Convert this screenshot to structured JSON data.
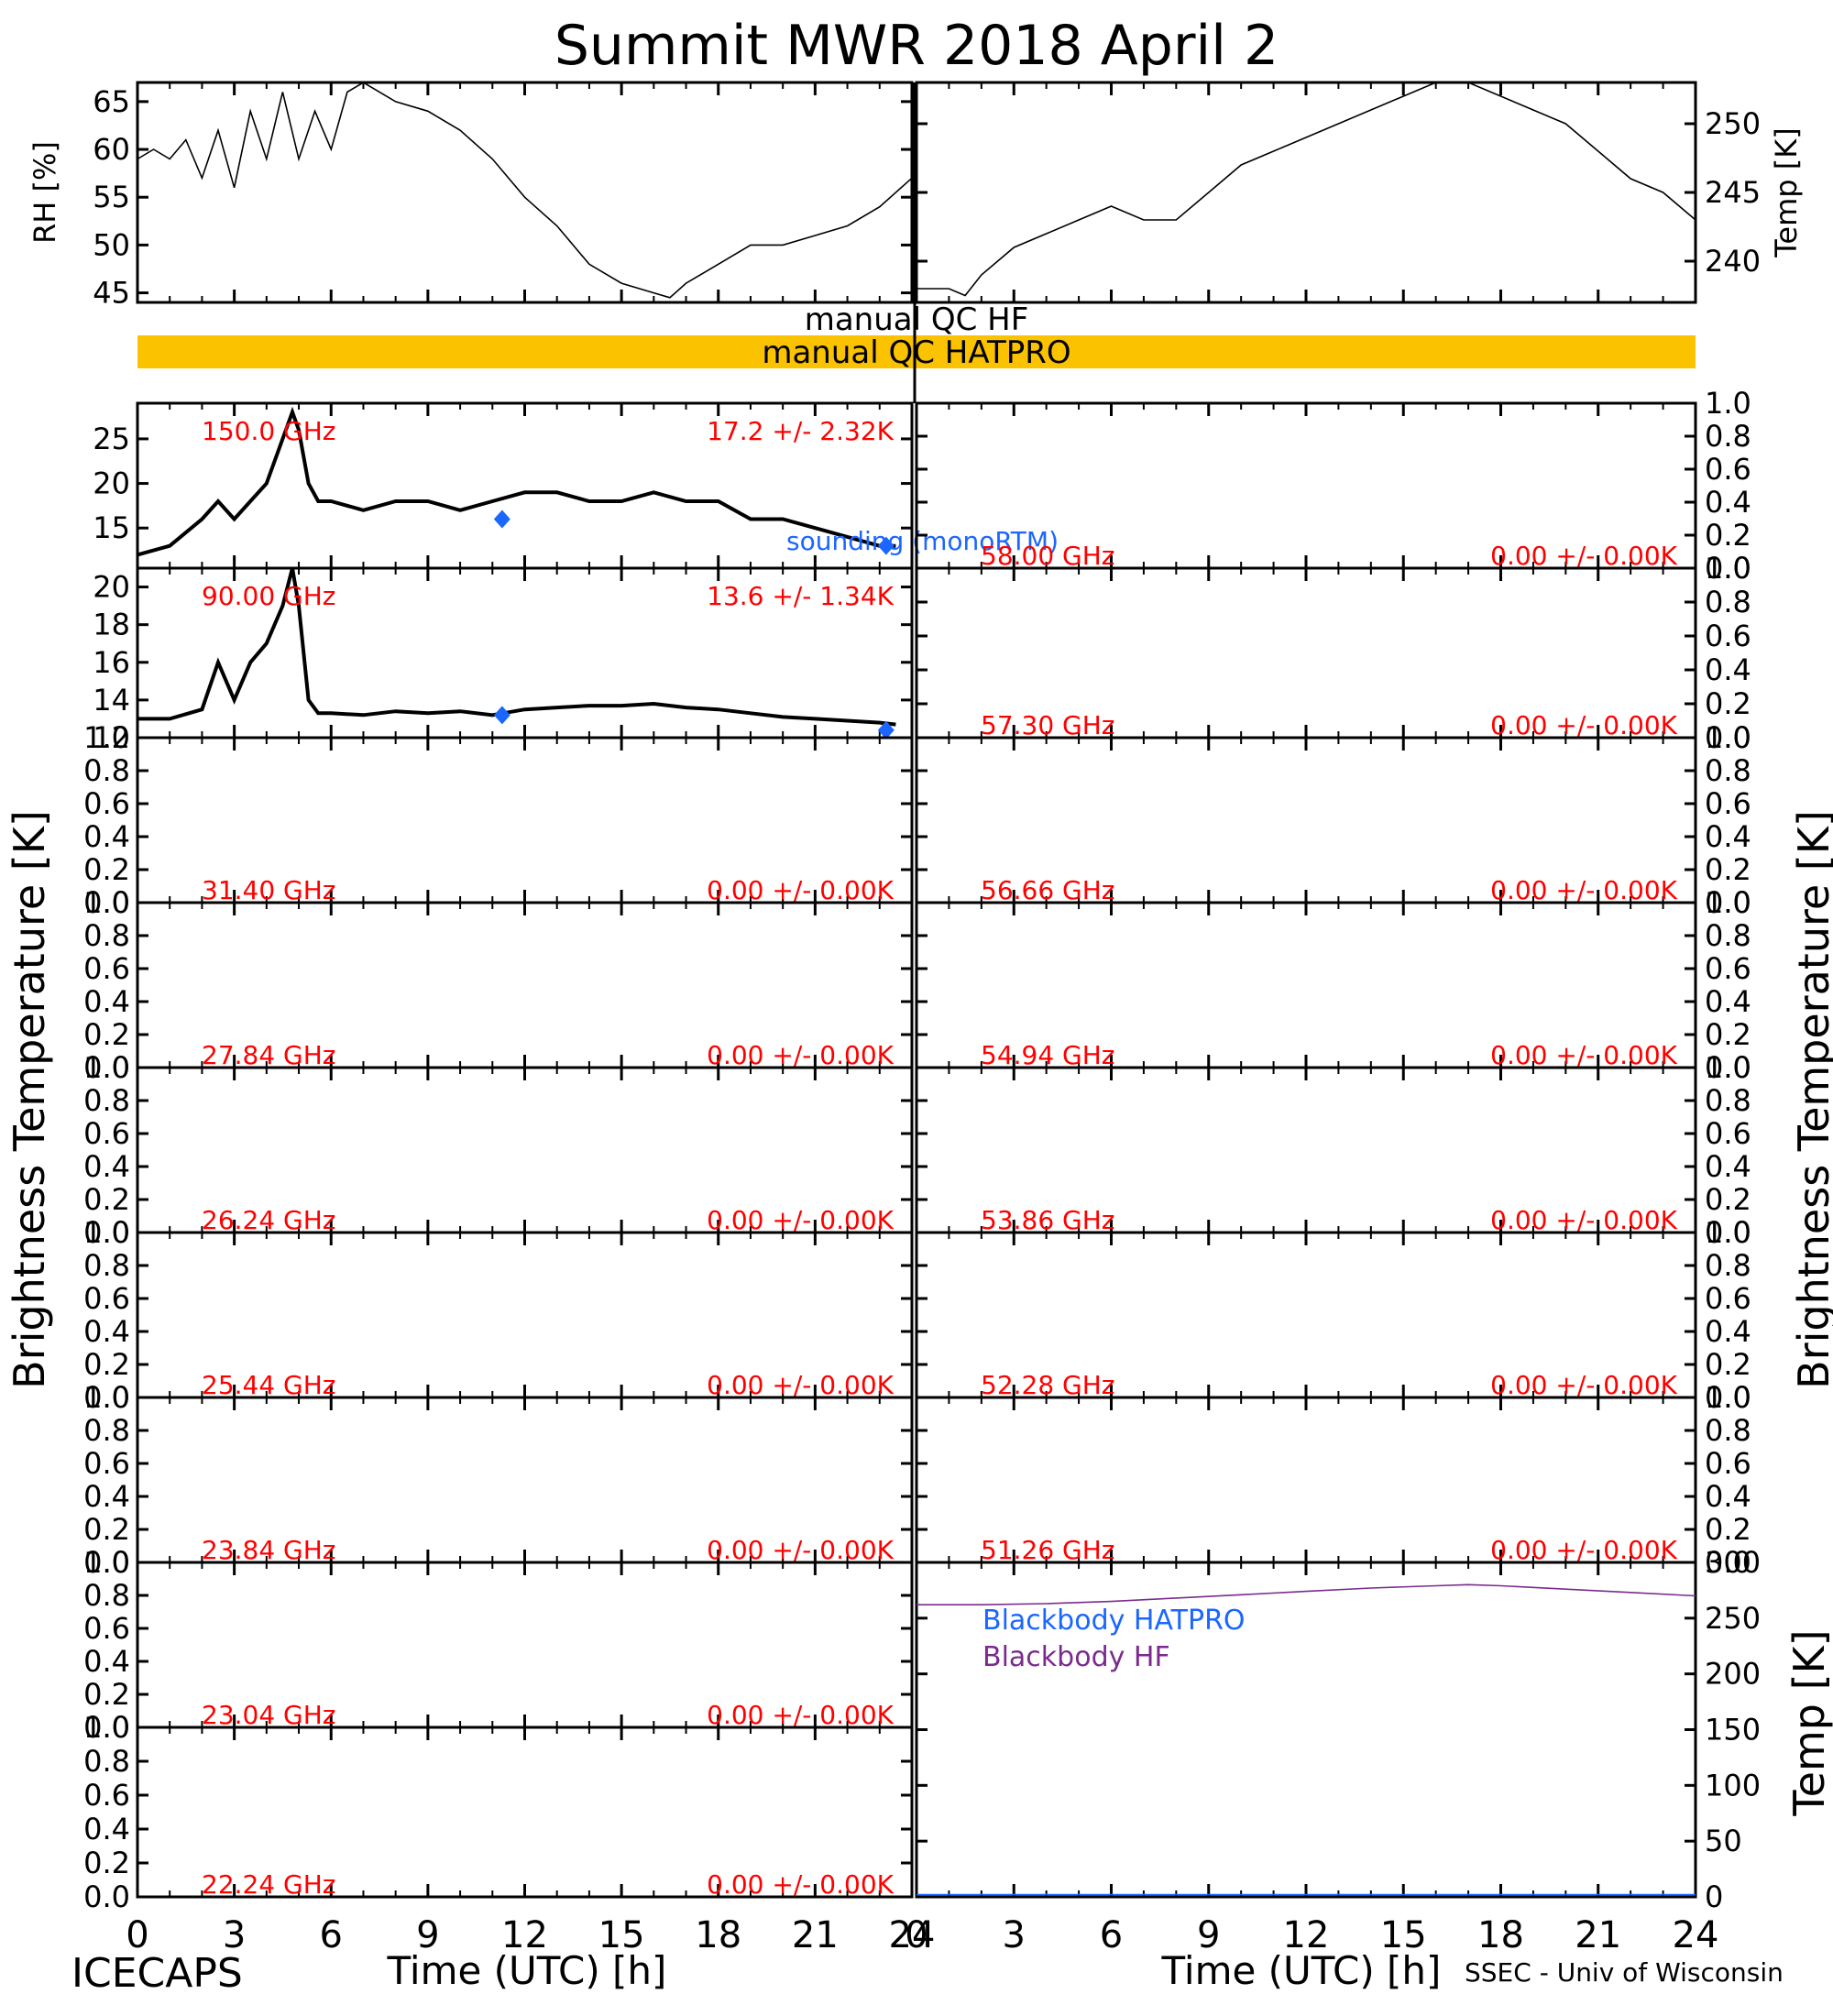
{
  "title": "Summit MWR 2018 April  2",
  "footer": {
    "left": "ICECAPS",
    "right": "SSEC - Univ of Wisconsin"
  },
  "xaxis": {
    "label": "Time (UTC) [h]",
    "ticks": [
      "0",
      "3",
      "6",
      "9",
      "12",
      "15",
      "18",
      "21",
      "24"
    ],
    "range": [
      0,
      24
    ],
    "tick_values": [
      0,
      3,
      6,
      9,
      12,
      15,
      18,
      21,
      24
    ]
  },
  "side_labels": {
    "bt_left": "Brightness Temperature [K]",
    "bt_right": "Brightness Temperature [K]"
  },
  "qc": {
    "hf_label": "manual  QC HF",
    "hatpro_label": "manual  QC HATPRO",
    "hatpro_color": "#fbc200"
  },
  "colors": {
    "red": "#ff0000",
    "blue": "#1a66ff",
    "purple": "#7b2b8e",
    "line": "#000000"
  },
  "chart_data": [
    {
      "id": "rh",
      "type": "line",
      "ylabel": "RH [%]",
      "ylim": [
        44,
        67
      ],
      "ticks": [
        45,
        50,
        55,
        60,
        65
      ],
      "tick_labels": [
        "45",
        "50",
        "55",
        "60",
        "65"
      ],
      "series": [
        {
          "x": [
            0,
            0.5,
            1,
            1.5,
            2,
            2.5,
            3,
            3.5,
            4,
            4.5,
            5,
            5.5,
            6,
            6.5,
            7,
            8,
            9,
            10,
            11,
            12,
            13,
            14,
            15,
            16,
            16.5,
            17,
            18,
            19,
            20,
            21,
            22,
            23,
            24
          ],
          "values": [
            59,
            60,
            59,
            61,
            57,
            62,
            56,
            64,
            59,
            66,
            59,
            64,
            60,
            66,
            67,
            65,
            64,
            62,
            59,
            55,
            52,
            48,
            46,
            45,
            44.5,
            46,
            48,
            50,
            50,
            51,
            52,
            54,
            57
          ]
        }
      ]
    },
    {
      "id": "temp",
      "type": "line",
      "ylabel": "Temp [K]",
      "ylim": [
        237,
        253
      ],
      "ticks": [
        240,
        245,
        250
      ],
      "tick_labels": [
        "240",
        "245",
        "250"
      ],
      "series": [
        {
          "x": [
            0,
            1,
            1.5,
            2,
            3,
            4,
            5,
            6,
            7,
            8,
            9,
            10,
            11,
            12,
            13,
            14,
            15,
            16,
            17,
            18,
            19,
            20,
            21,
            22,
            23,
            24
          ],
          "values": [
            238,
            238,
            237.5,
            239,
            241,
            242,
            243,
            244,
            243,
            243,
            245,
            247,
            248,
            249,
            250,
            251,
            252,
            253,
            253,
            252,
            251,
            250,
            248,
            246,
            245,
            243
          ]
        }
      ]
    },
    {
      "id": "bt150",
      "type": "line",
      "channel": "150.0 GHz",
      "stat": "17.2 +/-  2.32K",
      "ylim": [
        10.5,
        29
      ],
      "ticks": [
        15,
        20,
        25
      ],
      "tick_labels": [
        "15",
        "20",
        "25"
      ],
      "series": [
        {
          "x": [
            0,
            1,
            2,
            2.5,
            3,
            3.5,
            4,
            4.5,
            4.8,
            5,
            5.3,
            5.6,
            6,
            7,
            8,
            9,
            10,
            11,
            12,
            13,
            14,
            15,
            16,
            17,
            18,
            19,
            20,
            21,
            22,
            23,
            23.5
          ],
          "values": [
            12,
            13,
            16,
            18,
            16,
            18,
            20,
            25,
            28,
            26,
            20,
            18,
            18,
            17,
            18,
            18,
            17,
            18,
            19,
            19,
            18,
            18,
            19,
            18,
            18,
            16,
            16,
            15,
            14,
            13,
            13
          ]
        }
      ],
      "soundings": {
        "x": [
          11.3,
          23.2
        ],
        "values": [
          16,
          13
        ]
      },
      "sounding_label": "sounding (monoRTM)"
    },
    {
      "id": "bt90",
      "type": "line",
      "channel": "90.00 GHz",
      "stat": "13.6 +/-  1.34K",
      "ylim": [
        12,
        21
      ],
      "ticks": [
        12,
        14,
        16,
        18,
        20
      ],
      "tick_labels": [
        "12",
        "14",
        "16",
        "18",
        "20"
      ],
      "series": [
        {
          "x": [
            0,
            1,
            2,
            2.5,
            3,
            3.5,
            4,
            4.5,
            4.8,
            5,
            5.3,
            5.6,
            6,
            7,
            8,
            9,
            10,
            11,
            12,
            13,
            14,
            15,
            16,
            17,
            18,
            19,
            20,
            21,
            22,
            23,
            23.5
          ],
          "values": [
            13,
            13,
            13.5,
            16,
            14,
            16,
            17,
            19,
            21,
            19,
            14,
            13.3,
            13.3,
            13.2,
            13.4,
            13.3,
            13.4,
            13.2,
            13.5,
            13.6,
            13.7,
            13.7,
            13.8,
            13.6,
            13.5,
            13.3,
            13.1,
            13,
            12.9,
            12.8,
            12.7
          ]
        }
      ],
      "soundings": {
        "x": [
          11.3,
          23.2
        ],
        "values": [
          13.2,
          12.4
        ]
      }
    },
    {
      "id": "bt3140",
      "type": "line",
      "channel": "31.40 GHz",
      "stat": "0.00 +/-  0.00K",
      "ylim": [
        0,
        1
      ],
      "series": []
    },
    {
      "id": "bt2784",
      "type": "line",
      "channel": "27.84 GHz",
      "stat": "0.00 +/-  0.00K",
      "ylim": [
        0,
        1
      ],
      "series": []
    },
    {
      "id": "bt2624",
      "type": "line",
      "channel": "26.24 GHz",
      "stat": "0.00 +/-  0.00K",
      "ylim": [
        0,
        1
      ],
      "series": []
    },
    {
      "id": "bt2544",
      "type": "line",
      "channel": "25.44 GHz",
      "stat": "0.00 +/-  0.00K",
      "ylim": [
        0,
        1
      ],
      "series": []
    },
    {
      "id": "bt2384",
      "type": "line",
      "channel": "23.84 GHz",
      "stat": "0.00 +/-  0.00K",
      "ylim": [
        0,
        1
      ],
      "series": []
    },
    {
      "id": "bt2304",
      "type": "line",
      "channel": "23.04 GHz",
      "stat": "0.00 +/-  0.00K",
      "ylim": [
        0,
        1
      ],
      "series": []
    },
    {
      "id": "bt2224",
      "type": "line",
      "channel": "22.24 GHz",
      "stat": "0.00 +/-  0.00K",
      "ylim": [
        0,
        1
      ],
      "series": []
    },
    {
      "id": "bt5800",
      "type": "line",
      "channel": "58.00 GHz",
      "stat": "0.00 +/-  0.00K",
      "ylim": [
        0,
        1
      ],
      "series": []
    },
    {
      "id": "bt5730",
      "type": "line",
      "channel": "57.30 GHz",
      "stat": "0.00 +/-  0.00K",
      "ylim": [
        0,
        1
      ],
      "series": []
    },
    {
      "id": "bt5666",
      "type": "line",
      "channel": "56.66 GHz",
      "stat": "0.00 +/-  0.00K",
      "ylim": [
        0,
        1
      ],
      "series": []
    },
    {
      "id": "bt5494",
      "type": "line",
      "channel": "54.94 GHz",
      "stat": "0.00 +/-  0.00K",
      "ylim": [
        0,
        1
      ],
      "series": []
    },
    {
      "id": "bt5386",
      "type": "line",
      "channel": "53.86 GHz",
      "stat": "0.00 +/-  0.00K",
      "ylim": [
        0,
        1
      ],
      "series": []
    },
    {
      "id": "bt5228",
      "type": "line",
      "channel": "52.28 GHz",
      "stat": "0.00 +/-  0.00K",
      "ylim": [
        0,
        1
      ],
      "series": []
    },
    {
      "id": "bt5126",
      "type": "line",
      "channel": "51.26 GHz",
      "stat": "0.00 +/-  0.00K",
      "ylim": [
        0,
        1
      ],
      "series": []
    },
    {
      "id": "blackbody",
      "type": "line",
      "ylabel": "Temp [K]",
      "ylim": [
        0,
        300
      ],
      "ticks": [
        0,
        50,
        100,
        150,
        200,
        250,
        300
      ],
      "tick_labels": [
        "0",
        "50",
        "100",
        "150",
        "200",
        "250",
        "300"
      ],
      "series": [
        {
          "name": "Blackbody HATPRO",
          "x": [
            0,
            24
          ],
          "values": [
            2,
            2
          ]
        },
        {
          "name": "Blackbody HF",
          "x": [
            0,
            2,
            4,
            6,
            8,
            10,
            12,
            14,
            16,
            17,
            18,
            20,
            22,
            24
          ],
          "values": [
            262,
            262,
            263,
            265,
            268,
            271,
            274,
            277,
            279,
            280,
            279,
            276,
            273,
            270
          ]
        }
      ]
    }
  ],
  "unit_ticks": [
    "0.0",
    "0.2",
    "0.4",
    "0.6",
    "0.8",
    "1.0"
  ]
}
